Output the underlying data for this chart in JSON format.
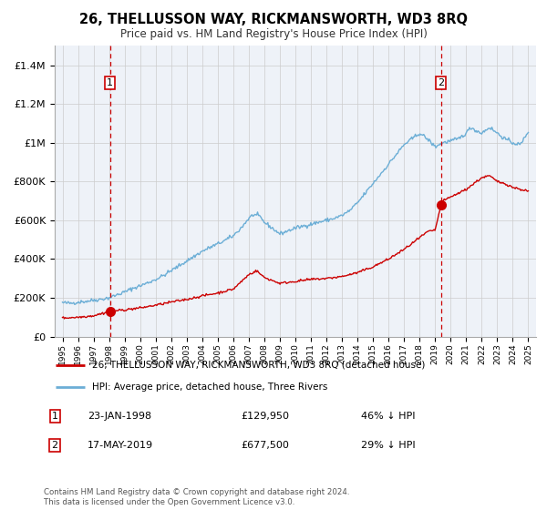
{
  "title": "26, THELLUSSON WAY, RICKMANSWORTH, WD3 8RQ",
  "subtitle": "Price paid vs. HM Land Registry's House Price Index (HPI)",
  "legend_line1": "26, THELLUSSON WAY, RICKMANSWORTH, WD3 8RQ (detached house)",
  "legend_line2": "HPI: Average price, detached house, Three Rivers",
  "marker1_date": "23-JAN-1998",
  "marker1_price": 129950,
  "marker1_label": "46% ↓ HPI",
  "marker2_date": "17-MAY-2019",
  "marker2_price": 677500,
  "marker2_label": "29% ↓ HPI",
  "footer": "Contains HM Land Registry data © Crown copyright and database right 2024.\nThis data is licensed under the Open Government Licence v3.0.",
  "hpi_color": "#6baed6",
  "sold_color": "#cc0000",
  "background_color": "#eef2f8",
  "ylim": [
    0,
    1500000
  ],
  "yticks": [
    0,
    200000,
    400000,
    600000,
    800000,
    1000000,
    1200000,
    1400000
  ],
  "marker1_x": 1998.06,
  "marker2_x": 2019.38,
  "hpi_keypoints_x": [
    1995,
    1995.5,
    1996,
    1996.5,
    1997,
    1997.5,
    1998,
    1998.5,
    1999,
    1999.5,
    2000,
    2000.5,
    2001,
    2001.5,
    2002,
    2002.5,
    2003,
    2003.5,
    2004,
    2004.5,
    2005,
    2005.5,
    2006,
    2006.5,
    2007,
    2007.3,
    2007.7,
    2008,
    2008.5,
    2009,
    2009.5,
    2010,
    2010.5,
    2011,
    2011.5,
    2012,
    2012.5,
    2013,
    2013.5,
    2014,
    2014.5,
    2015,
    2015.5,
    2016,
    2016.5,
    2017,
    2017.5,
    2018,
    2018.5,
    2019,
    2019.5,
    2020,
    2020.5,
    2021,
    2021.3,
    2021.7,
    2022,
    2022.5,
    2023,
    2023.5,
    2024,
    2024.5,
    2025
  ],
  "hpi_keypoints_y": [
    175000,
    172000,
    178000,
    182000,
    188000,
    193000,
    200000,
    215000,
    230000,
    248000,
    262000,
    278000,
    295000,
    315000,
    340000,
    365000,
    390000,
    415000,
    440000,
    460000,
    478000,
    498000,
    520000,
    560000,
    610000,
    630000,
    620000,
    590000,
    560000,
    530000,
    545000,
    560000,
    570000,
    580000,
    590000,
    600000,
    610000,
    625000,
    650000,
    690000,
    740000,
    790000,
    840000,
    890000,
    940000,
    990000,
    1020000,
    1050000,
    1020000,
    980000,
    1000000,
    1010000,
    1020000,
    1050000,
    1080000,
    1060000,
    1050000,
    1080000,
    1050000,
    1020000,
    1000000,
    990000,
    1060000
  ],
  "sold_keypoints_x": [
    1995,
    1996,
    1997,
    1998.06,
    1999,
    2000,
    2001,
    2002,
    2003,
    2004,
    2005,
    2006,
    2007,
    2007.5,
    2008,
    2009,
    2010,
    2011,
    2012,
    2013,
    2014,
    2015,
    2016,
    2017,
    2018,
    2018.5,
    2019,
    2019.38,
    2019.5,
    2020,
    2021,
    2022,
    2022.5,
    2023,
    2023.5,
    2024,
    2024.5,
    2025
  ],
  "sold_keypoints_y": [
    96000,
    100000,
    108000,
    129950,
    138000,
    148000,
    162000,
    178000,
    192000,
    210000,
    225000,
    245000,
    320000,
    340000,
    305000,
    275000,
    285000,
    295000,
    300000,
    310000,
    330000,
    360000,
    400000,
    450000,
    510000,
    540000,
    550000,
    677500,
    700000,
    720000,
    760000,
    820000,
    830000,
    800000,
    790000,
    770000,
    760000,
    750000
  ]
}
